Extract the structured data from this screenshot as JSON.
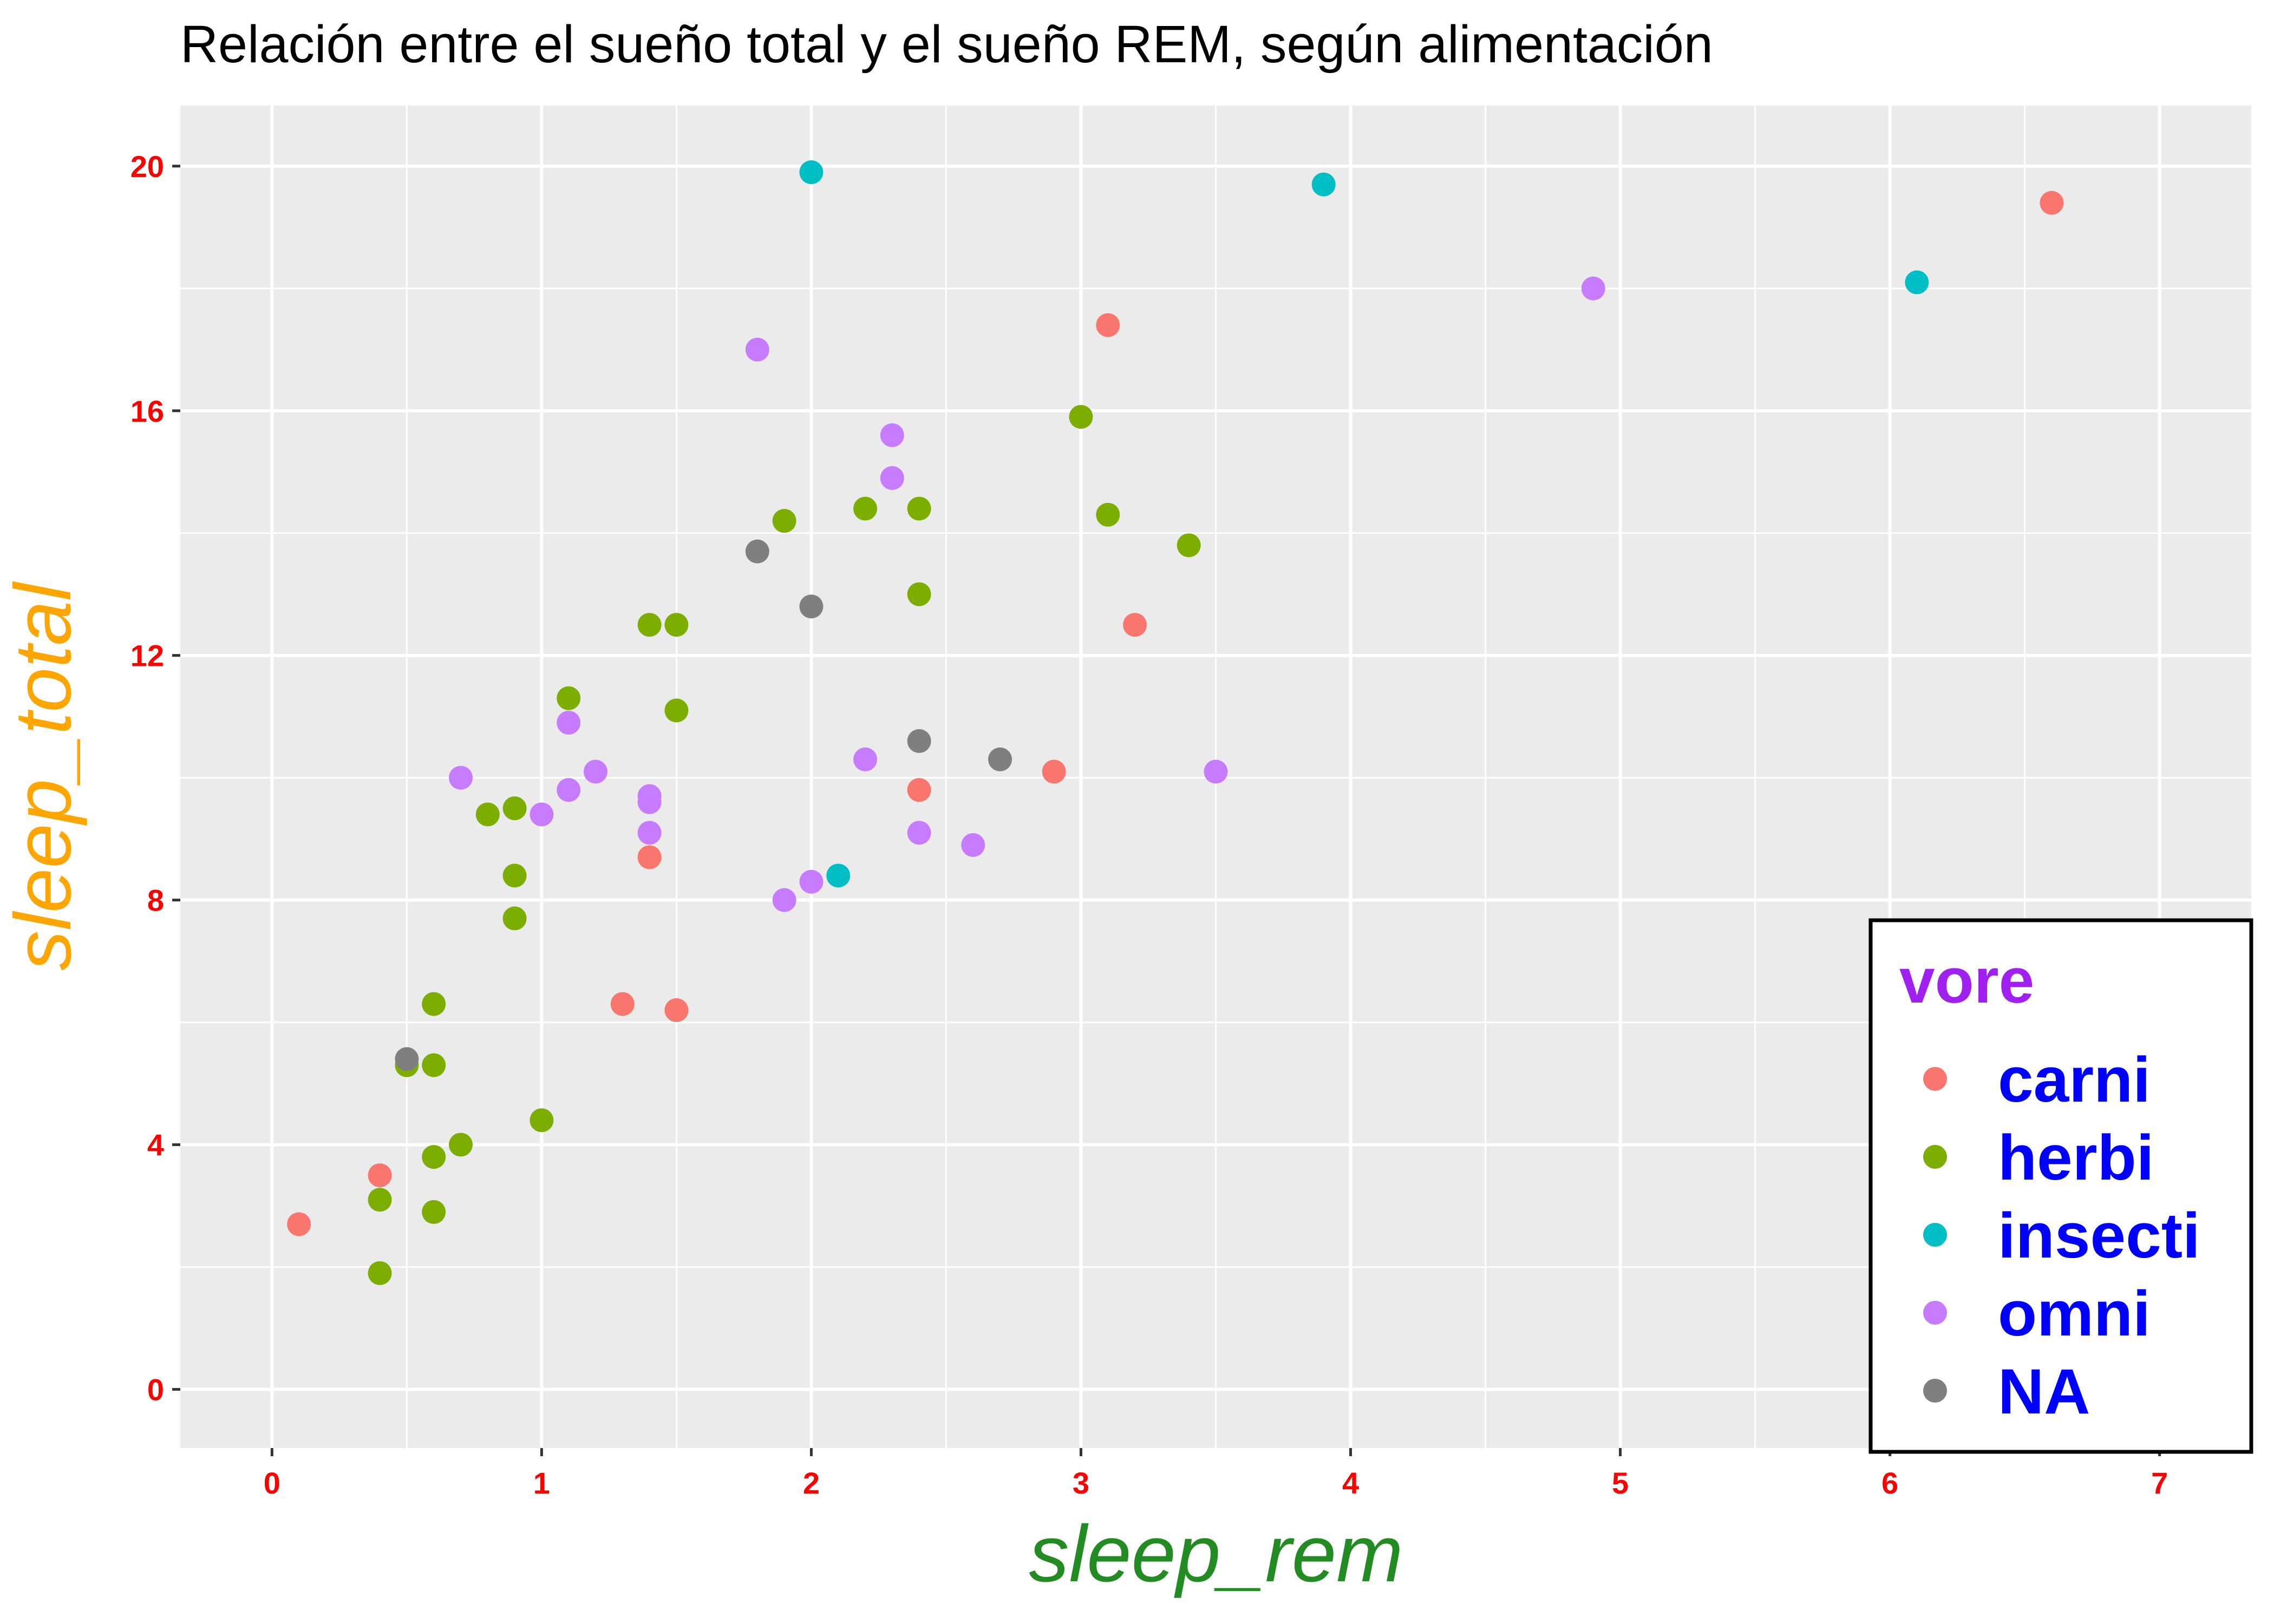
{
  "chart_data": {
    "type": "scatter",
    "title": "Relación entre el sueño total y el sueño REM, según alimentación",
    "xlabel": "sleep_rem",
    "ylabel": "sleep_total",
    "xlim": [
      -0.34,
      7.34
    ],
    "ylim": [
      -0.96,
      20.99
    ],
    "x_ticks": [
      0,
      1,
      2,
      3,
      4,
      5,
      6,
      7
    ],
    "y_ticks": [
      0,
      4,
      8,
      12,
      16,
      20
    ],
    "grid": true,
    "legend_position": "bottom-right",
    "legend_title": "vore",
    "colors": {
      "panel": "#EBEBEB",
      "grid": "#FFFFFF",
      "tick_labels": "#FF0000",
      "xlabel": "#228B22",
      "ylabel": "#FFA500",
      "legend_title": "#A020F0",
      "legend_labels": "#0000FF"
    },
    "series": [
      {
        "name": "carni",
        "color": "#F8766D",
        "points": [
          [
            0.1,
            2.7
          ],
          [
            0.4,
            3.5
          ],
          [
            1.3,
            6.3
          ],
          [
            1.4,
            8.7
          ],
          [
            1.5,
            6.2
          ],
          [
            2.4,
            9.8
          ],
          [
            2.9,
            10.1
          ],
          [
            3.1,
            17.4
          ],
          [
            3.2,
            12.5
          ],
          [
            6.6,
            19.4
          ]
        ]
      },
      {
        "name": "herbi",
        "color": "#7CAE00",
        "points": [
          [
            0.4,
            1.9
          ],
          [
            0.4,
            3.1
          ],
          [
            0.5,
            5.3
          ],
          [
            0.6,
            2.9
          ],
          [
            0.6,
            3.8
          ],
          [
            0.6,
            5.3
          ],
          [
            0.6,
            6.3
          ],
          [
            0.7,
            4.0
          ],
          [
            0.8,
            9.4
          ],
          [
            0.9,
            7.7
          ],
          [
            0.9,
            8.4
          ],
          [
            0.9,
            9.5
          ],
          [
            1.0,
            4.4
          ],
          [
            1.1,
            11.3
          ],
          [
            1.4,
            12.5
          ],
          [
            1.5,
            12.5
          ],
          [
            1.5,
            11.1
          ],
          [
            1.9,
            14.2
          ],
          [
            2.2,
            14.4
          ],
          [
            2.4,
            14.4
          ],
          [
            2.4,
            13.0
          ],
          [
            3.0,
            15.9
          ],
          [
            3.1,
            14.3
          ],
          [
            3.4,
            13.8
          ]
        ]
      },
      {
        "name": "insecti",
        "color": "#00BFC4",
        "points": [
          [
            2.0,
            19.9
          ],
          [
            2.1,
            8.4
          ],
          [
            3.9,
            19.7
          ],
          [
            6.1,
            18.1
          ]
        ]
      },
      {
        "name": "omni",
        "color": "#C77CFF",
        "points": [
          [
            0.7,
            10.0
          ],
          [
            1.0,
            9.4
          ],
          [
            1.1,
            10.9
          ],
          [
            1.1,
            9.8
          ],
          [
            1.2,
            10.1
          ],
          [
            1.4,
            9.7
          ],
          [
            1.4,
            9.6
          ],
          [
            1.4,
            9.1
          ],
          [
            1.8,
            17.0
          ],
          [
            1.9,
            8.0
          ],
          [
            2.0,
            8.3
          ],
          [
            2.2,
            10.3
          ],
          [
            2.3,
            15.6
          ],
          [
            2.3,
            14.9
          ],
          [
            2.4,
            9.1
          ],
          [
            2.6,
            8.9
          ],
          [
            3.5,
            10.1
          ],
          [
            4.9,
            18.0
          ]
        ]
      },
      {
        "name": "NA",
        "color": "#7F7F7F",
        "points": [
          [
            0.5,
            5.4
          ],
          [
            1.8,
            13.7
          ],
          [
            2.0,
            12.8
          ],
          [
            2.4,
            10.6
          ],
          [
            2.7,
            10.3
          ]
        ]
      }
    ]
  }
}
